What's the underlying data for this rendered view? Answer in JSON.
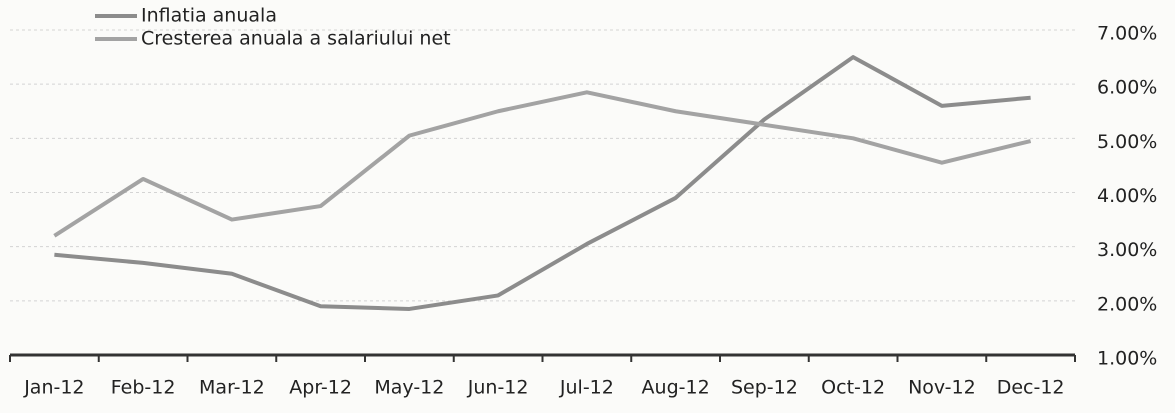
{
  "chart_data": {
    "type": "line",
    "categories": [
      "Jan-12",
      "Feb-12",
      "Mar-12",
      "Apr-12",
      "May-12",
      "Jun-12",
      "Jul-12",
      "Aug-12",
      "Sep-12",
      "Oct-12",
      "Nov-12",
      "Dec-12"
    ],
    "series": [
      {
        "name": "Inflatia anuala",
        "color": "#8c8c8c",
        "values": [
          2.85,
          2.7,
          2.5,
          1.9,
          1.85,
          2.1,
          3.05,
          3.9,
          5.35,
          6.5,
          5.6,
          5.75
        ]
      },
      {
        "name": "Cresterea anuala a salariului net",
        "color": "#a3a3a3",
        "values": [
          3.2,
          4.25,
          3.5,
          3.75,
          5.05,
          5.5,
          5.85,
          5.5,
          5.25,
          5.0,
          4.55,
          4.95
        ]
      }
    ],
    "ylim": [
      1,
      7
    ],
    "yticks": [
      {
        "value": 1,
        "label": "1.00%"
      },
      {
        "value": 2,
        "label": "2.00%"
      },
      {
        "value": 3,
        "label": "3.00%"
      },
      {
        "value": 4,
        "label": "4.00%"
      },
      {
        "value": 5,
        "label": "5.00%"
      },
      {
        "value": 6,
        "label": "6.00%"
      },
      {
        "value": 7,
        "label": "7.00%"
      }
    ],
    "grid": true,
    "legend": "top-left"
  }
}
